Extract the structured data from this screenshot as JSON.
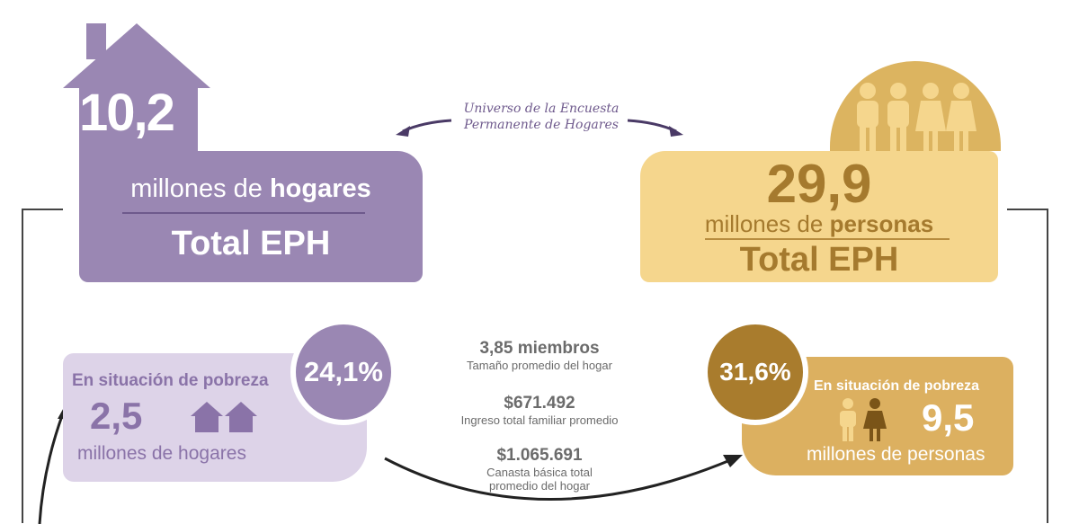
{
  "households": {
    "total_number": "10,2",
    "units_prefix": "millones de ",
    "units_bold": "hogares",
    "total_label": "Total EPH"
  },
  "persons": {
    "total_number": "29,9",
    "units_prefix": "millones de ",
    "units_bold": "personas",
    "total_label": "Total EPH"
  },
  "caption": {
    "line1": "Universo de la Encuesta",
    "line2": "Permanente de Hogares"
  },
  "poverty_households": {
    "percent": "24,1%",
    "label": "En situación de pobreza",
    "number": "2,5",
    "units": "millones de hogares"
  },
  "poverty_persons": {
    "percent": "31,6%",
    "label": "En situación de pobreza",
    "number": "9,5",
    "units": "millones de personas"
  },
  "stats": [
    {
      "value": "3,85 miembros",
      "label": "Tamaño promedio del hogar"
    },
    {
      "value": "$671.492",
      "label": "Ingreso total familiar promedio"
    },
    {
      "value": "$1.065.691",
      "label": "Canasta básica total",
      "label2": "promedio del hogar"
    }
  ],
  "colors": {
    "purple": "#9a87b3",
    "light_purple": "#ddd3e8",
    "gold": "#dcb460",
    "light_gold": "#f5d68d",
    "dark_gold": "#a97c2d"
  },
  "icons": [
    "house-icon",
    "person-icon",
    "arrow-icon"
  ]
}
